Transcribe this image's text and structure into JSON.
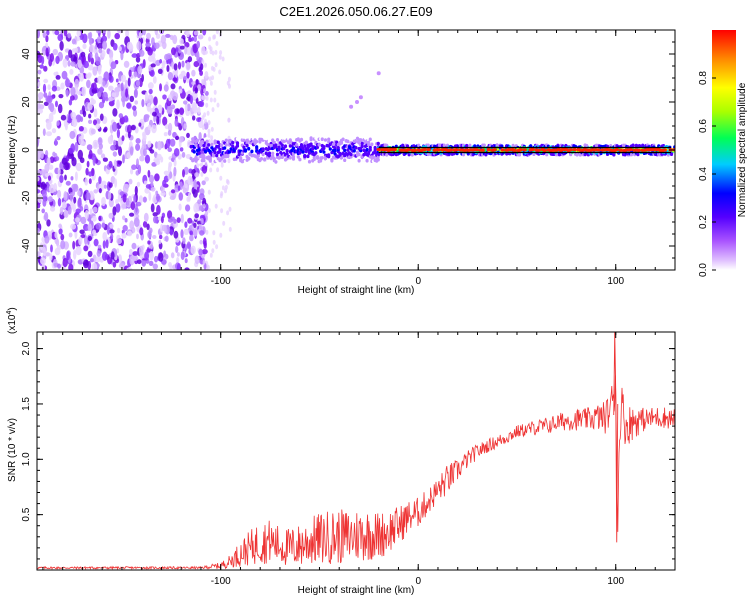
{
  "figure": {
    "title": "C2E1.2026.050.06.27.E09"
  },
  "chart_data": [
    {
      "type": "heatmap",
      "title": "C2E1.2026.050.06.27.E09",
      "xlabel": "Height of straight line (km)",
      "ylabel": "Frequency (Hz)",
      "xlim": [
        -193,
        130
      ],
      "ylim": [
        -50,
        50
      ],
      "x_ticks": [
        -100,
        0,
        100
      ],
      "x_tick_labels": [
        "-100",
        "0",
        "100"
      ],
      "y_ticks": [
        -40,
        -20,
        0,
        20,
        40
      ],
      "y_tick_labels": [
        "-40",
        "-20",
        "0",
        "20",
        "40"
      ],
      "colorbar": {
        "label": "Normalized spectral amplitude",
        "range": [
          0,
          1
        ],
        "ticks": [
          0.0,
          0.2,
          0.4,
          0.6,
          0.8
        ],
        "tick_labels": [
          "0.0",
          "0.2",
          "0.4",
          "0.6",
          "0.8"
        ],
        "colormap": [
          "#ffffff",
          "#cc99ff",
          "#8800ff",
          "#2222ff",
          "#00ccff",
          "#00ff66",
          "#ffff00",
          "#ff8800",
          "#ff0000"
        ]
      },
      "noise_region_x": [
        -193,
        -107
      ],
      "trend_line_x": [
        -20,
        128
      ],
      "band_segments": [
        {
          "x_from": -115,
          "x_to": -20,
          "half_width_hz": 5,
          "peak_amplitude": 0.45
        },
        {
          "x_from": -20,
          "x_to": 130,
          "half_width_hz": 2,
          "peak_amplitude": 0.95
        }
      ],
      "harmonic_points": [
        {
          "x": -34,
          "y": 18
        },
        {
          "x": -31,
          "y": 20
        },
        {
          "x": -29,
          "y": 22
        },
        {
          "x": -20,
          "y": 32
        }
      ]
    },
    {
      "type": "line",
      "xlabel": "Height of straight line (km)",
      "ylabel": "SNR (10 * v/v)",
      "y_multiplier": "(x10",
      "y_exponent": "4",
      "y_multiplier_close": ")",
      "xlim": [
        -193,
        130
      ],
      "ylim": [
        0,
        2.15
      ],
      "x_ticks": [
        -100,
        0,
        100
      ],
      "x_tick_labels": [
        "-100",
        "0",
        "100"
      ],
      "y_ticks": [
        0.5,
        1.0,
        1.5,
        2.0
      ],
      "y_tick_labels": [
        "0.5",
        "1.0",
        "1.5",
        "2.0"
      ],
      "color": "#ee3333",
      "series": [
        {
          "name": "SNR",
          "x": [
            -193,
            -170,
            -150,
            -130,
            -110,
            -100,
            -95,
            -90,
            -85,
            -80,
            -75,
            -70,
            -65,
            -60,
            -55,
            -50,
            -45,
            -40,
            -35,
            -30,
            -25,
            -20,
            -15,
            -10,
            -5,
            0,
            5,
            10,
            15,
            20,
            25,
            30,
            35,
            40,
            45,
            50,
            55,
            60,
            65,
            70,
            75,
            80,
            85,
            90,
            95,
            98,
            100,
            101,
            102,
            103,
            105,
            110,
            115,
            120,
            125,
            130
          ],
          "y": [
            0.02,
            0.02,
            0.02,
            0.02,
            0.02,
            0.04,
            0.08,
            0.15,
            0.2,
            0.25,
            0.26,
            0.22,
            0.2,
            0.22,
            0.26,
            0.28,
            0.3,
            0.3,
            0.3,
            0.32,
            0.32,
            0.31,
            0.35,
            0.4,
            0.48,
            0.52,
            0.62,
            0.72,
            0.82,
            0.9,
            1.0,
            1.07,
            1.12,
            1.16,
            1.2,
            1.25,
            1.27,
            1.29,
            1.3,
            1.33,
            1.35,
            1.36,
            1.36,
            1.38,
            1.38,
            1.5,
            1.75,
            0.3,
            1.4,
            1.5,
            1.3,
            1.35,
            1.36,
            1.38,
            1.38,
            1.36
          ],
          "noise_amplitude": [
            0.01,
            0.01,
            0.01,
            0.01,
            0.01,
            0.03,
            0.06,
            0.12,
            0.16,
            0.2,
            0.2,
            0.18,
            0.18,
            0.2,
            0.22,
            0.24,
            0.25,
            0.25,
            0.25,
            0.25,
            0.24,
            0.22,
            0.2,
            0.18,
            0.15,
            0.14,
            0.12,
            0.12,
            0.14,
            0.1,
            0.08,
            0.07,
            0.06,
            0.06,
            0.06,
            0.06,
            0.06,
            0.07,
            0.08,
            0.08,
            0.09,
            0.1,
            0.1,
            0.12,
            0.15,
            0.2,
            0.3,
            0.1,
            0.25,
            0.2,
            0.2,
            0.15,
            0.1,
            0.1,
            0.1,
            0.1
          ]
        }
      ]
    }
  ]
}
